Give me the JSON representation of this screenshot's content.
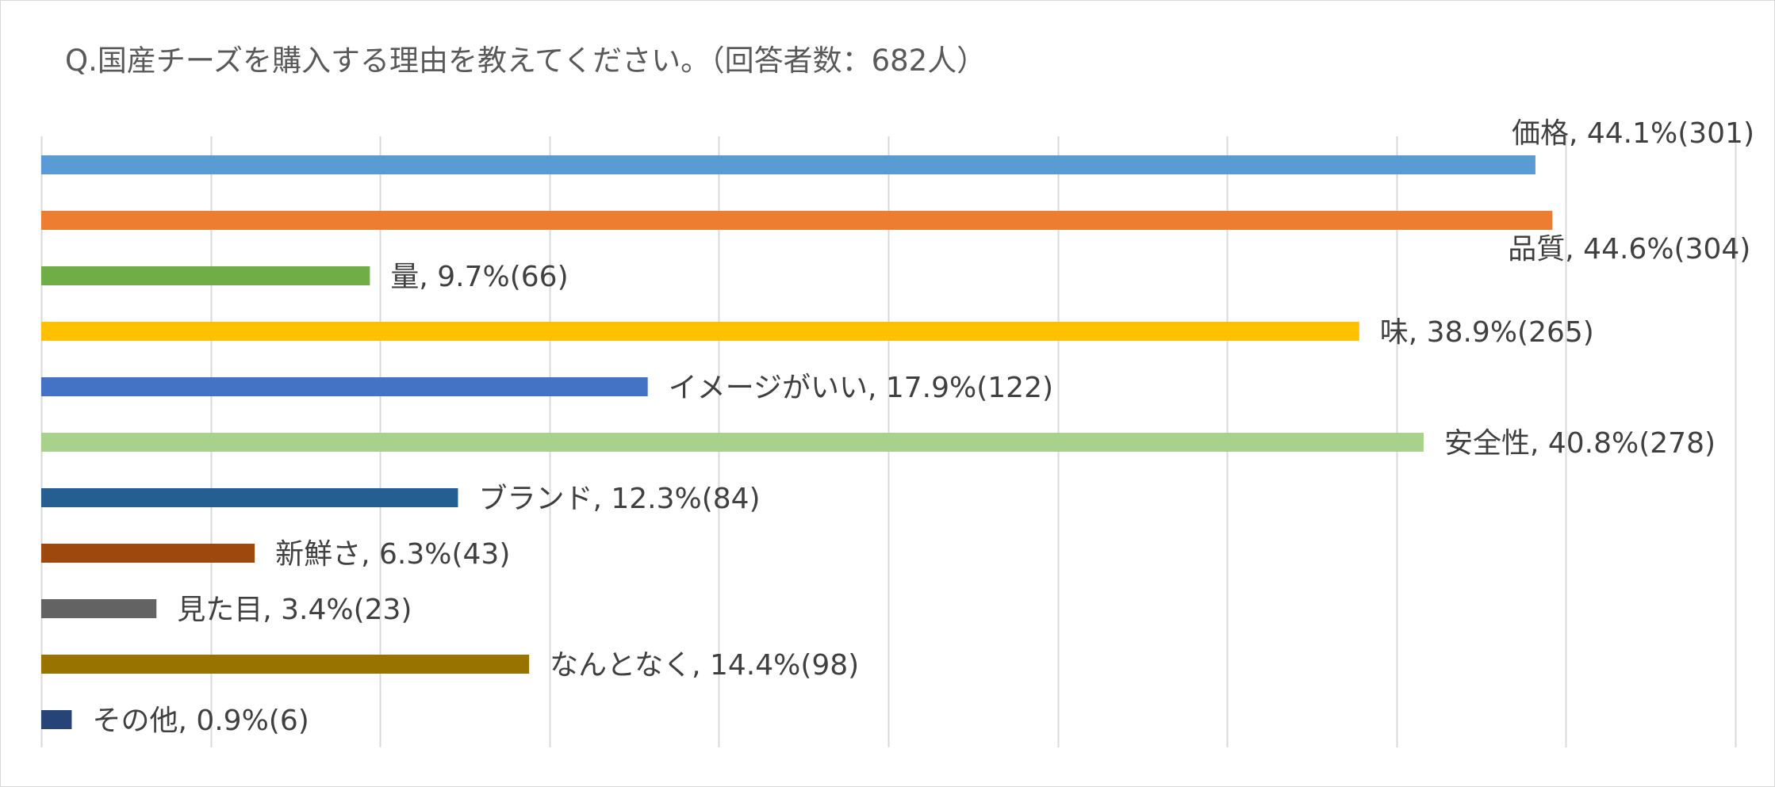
{
  "title": "Q.国産チーズを購入する理由を教えてください。（回答者数：682人）",
  "chart_data": {
    "type": "bar",
    "orientation": "horizontal",
    "xlim": [
      0,
      50
    ],
    "grid": true,
    "legend": "none",
    "bars": [
      {
        "name": "価格",
        "value": 44.1,
        "count": 301,
        "label": "価格, 44.1%(301)",
        "color": "#5b9bd5",
        "label_position": "above-end"
      },
      {
        "name": "品質",
        "value": 44.6,
        "count": 304,
        "label": "品質, 44.6%(304)",
        "color": "#ed7d31",
        "label_position": "below-end"
      },
      {
        "name": "量",
        "value": 9.7,
        "count": 66,
        "label": "量, 9.7%(66)",
        "color": "#70ad47",
        "label_position": "right"
      },
      {
        "name": "味",
        "value": 38.9,
        "count": 265,
        "label": "味, 38.9%(265)",
        "color": "#ffc000",
        "label_position": "right"
      },
      {
        "name": "イメージがいい",
        "value": 17.9,
        "count": 122,
        "label": "イメージがいい, 17.9%(122)",
        "color": "#4472c4",
        "label_position": "right"
      },
      {
        "name": "安全性",
        "value": 40.8,
        "count": 278,
        "label": "安全性, 40.8%(278)",
        "color": "#a9d18e",
        "label_position": "right"
      },
      {
        "name": "ブランド",
        "value": 12.3,
        "count": 84,
        "label": "ブランド, 12.3%(84)",
        "color": "#255e91",
        "label_position": "right"
      },
      {
        "name": "新鮮さ",
        "value": 6.3,
        "count": 43,
        "label": "新鮮さ, 6.3%(43)",
        "color": "#9e480e",
        "label_position": "right"
      },
      {
        "name": "見た目",
        "value": 3.4,
        "count": 23,
        "label": "見た目, 3.4%(23)",
        "color": "#636363",
        "label_position": "right"
      },
      {
        "name": "なんとなく",
        "value": 14.4,
        "count": 98,
        "label": "なんとなく, 14.4%(98)",
        "color": "#997300",
        "label_position": "right"
      },
      {
        "name": "その他",
        "value": 0.9,
        "count": 6,
        "label": "その他, 0.9%(6)",
        "color": "#264478",
        "label_position": "right"
      }
    ],
    "grid_color": "#d9d9d9"
  }
}
